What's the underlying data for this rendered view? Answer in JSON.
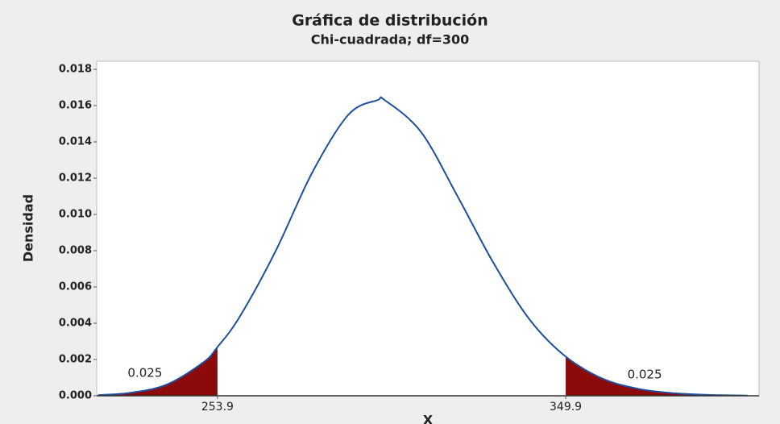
{
  "chart_data": {
    "type": "line",
    "title": "Gráfica de distribución",
    "subtitle": "Chi-cuadrada; df=300",
    "y_label": "Densidad",
    "x_label": "X",
    "x": [
      221,
      230,
      240,
      250,
      253.9,
      260,
      270,
      280,
      290,
      298,
      300,
      310,
      320,
      330,
      340,
      349.9,
      360,
      370,
      380,
      390,
      400
    ],
    "values": [
      3.9e-05,
      0.000166,
      0.000626,
      0.00184,
      0.00269,
      0.00435,
      0.00801,
      0.0123,
      0.0155,
      0.0163,
      0.0163,
      0.01455,
      0.01103,
      0.00732,
      0.00419,
      0.00216,
      0.00095,
      0.00038,
      0.000137,
      4.4e-05,
      1.3e-05
    ],
    "color": "#1f4e9c",
    "shade_color": "#8b0a0a",
    "xlim": [
      220.6,
      403.2
    ],
    "xticks": [
      253.9,
      349.9
    ],
    "tail_areas": [
      0.025,
      0.025
    ],
    "ylim": [
      0,
      0.018
    ],
    "yticks": [
      {
        "value": 0,
        "label": "0.000"
      },
      {
        "value": 0.002,
        "label": "0.002"
      },
      {
        "value": 0.004,
        "label": "0.004"
      },
      {
        "value": 0.006,
        "label": "0.006"
      },
      {
        "value": 0.008,
        "label": "0.008"
      },
      {
        "value": 0.01,
        "label": "0.010"
      },
      {
        "value": 0.012,
        "label": "0.012"
      },
      {
        "value": 0.014,
        "label": "0.014"
      },
      {
        "value": 0.016,
        "label": "0.016"
      },
      {
        "value": 0.018,
        "label": "0.018"
      }
    ]
  }
}
